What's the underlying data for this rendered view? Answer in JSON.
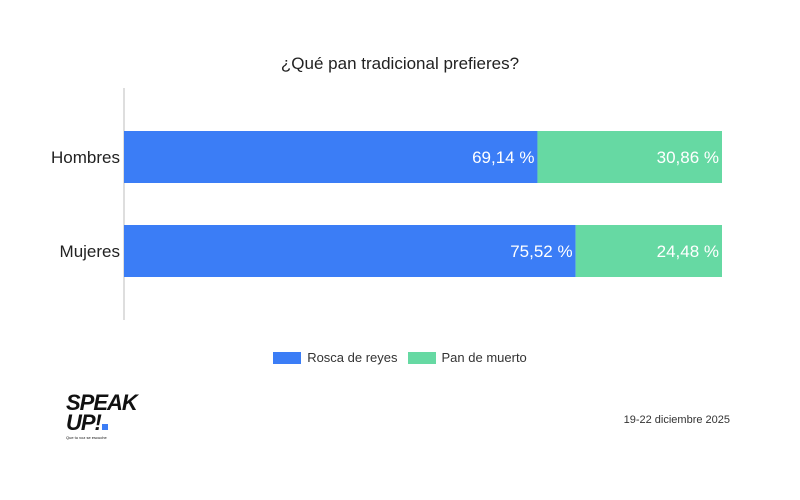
{
  "chart_data": {
    "type": "bar",
    "orientation": "horizontal",
    "stacked": true,
    "percent": true,
    "title": "¿Qué pan tradicional prefieres?",
    "categories": [
      "Hombres",
      "Mujeres"
    ],
    "series": [
      {
        "name": "Rosca de reyes",
        "values": [
          69.14,
          75.52
        ],
        "labels": [
          "69,14 %",
          "75,52 %"
        ],
        "color": "#3b7df6"
      },
      {
        "name": "Pan de muerto",
        "values": [
          30.86,
          24.48
        ],
        "labels": [
          "30,86 %",
          "24,48 %"
        ],
        "color": "#66d9a3"
      }
    ],
    "xlim": [
      0,
      100
    ],
    "legend_position": "bottom",
    "grid": false
  },
  "footer": {
    "date": "19-22 diciembre 2025",
    "logo_text": [
      "SPEAK",
      "UP!"
    ],
    "logo_tagline": "Que tu voz se escuche"
  },
  "colors": {
    "axis": "#bdbdbd",
    "background": "#ffffff"
  }
}
